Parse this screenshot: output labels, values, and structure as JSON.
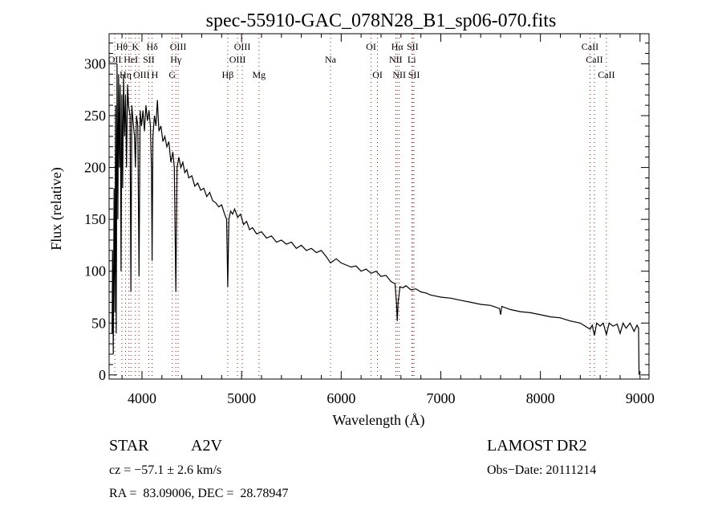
{
  "chart_data": {
    "type": "line",
    "title": "spec-55910-GAC_078N28_B1_sp06-070.fits",
    "xlabel": "Wavelength (Å)",
    "ylabel": "Flux (relative)",
    "xlim": [
      3670,
      9090
    ],
    "ylim": [
      -4,
      329
    ],
    "xticks": [
      4000,
      5000,
      6000,
      7000,
      8000,
      9000
    ],
    "yticks": [
      0,
      50,
      100,
      150,
      200,
      250,
      300
    ],
    "grid": false,
    "series": [
      {
        "name": "spectrum",
        "points": [
          [
            3700,
            40
          ],
          [
            3705,
            120
          ],
          [
            3712,
            20
          ],
          [
            3720,
            180
          ],
          [
            3728,
            60
          ],
          [
            3735,
            260
          ],
          [
            3742,
            40
          ],
          [
            3750,
            300
          ],
          [
            3758,
            150
          ],
          [
            3766,
            290
          ],
          [
            3774,
            200
          ],
          [
            3782,
            280
          ],
          [
            3790,
            100
          ],
          [
            3798,
            270
          ],
          [
            3806,
            180
          ],
          [
            3815,
            290
          ],
          [
            3825,
            230
          ],
          [
            3835,
            270
          ],
          [
            3845,
            200
          ],
          [
            3855,
            280
          ],
          [
            3865,
            260
          ],
          [
            3880,
            250
          ],
          [
            3889,
            80
          ],
          [
            3898,
            260
          ],
          [
            3910,
            245
          ],
          [
            3925,
            230
          ],
          [
            3934,
            200
          ],
          [
            3945,
            250
          ],
          [
            3958,
            240
          ],
          [
            3970,
            95
          ],
          [
            3982,
            255
          ],
          [
            3995,
            240
          ],
          [
            4010,
            255
          ],
          [
            4025,
            235
          ],
          [
            4040,
            260
          ],
          [
            4055,
            245
          ],
          [
            4070,
            255
          ],
          [
            4085,
            240
          ],
          [
            4095,
            200
          ],
          [
            4102,
            110
          ],
          [
            4110,
            230
          ],
          [
            4125,
            250
          ],
          [
            4140,
            240
          ],
          [
            4155,
            265
          ],
          [
            4170,
            235
          ],
          [
            4190,
            240
          ],
          [
            4210,
            225
          ],
          [
            4230,
            230
          ],
          [
            4250,
            220
          ],
          [
            4270,
            225
          ],
          [
            4290,
            205
          ],
          [
            4310,
            215
          ],
          [
            4325,
            200
          ],
          [
            4340,
            80
          ],
          [
            4352,
            200
          ],
          [
            4370,
            210
          ],
          [
            4390,
            200
          ],
          [
            4410,
            205
          ],
          [
            4430,
            195
          ],
          [
            4450,
            198
          ],
          [
            4470,
            190
          ],
          [
            4500,
            192
          ],
          [
            4530,
            182
          ],
          [
            4560,
            185
          ],
          [
            4590,
            178
          ],
          [
            4620,
            180
          ],
          [
            4650,
            172
          ],
          [
            4680,
            176
          ],
          [
            4710,
            168
          ],
          [
            4740,
            166
          ],
          [
            4770,
            162
          ],
          [
            4800,
            164
          ],
          [
            4830,
            155
          ],
          [
            4850,
            150
          ],
          [
            4861,
            85
          ],
          [
            4872,
            150
          ],
          [
            4890,
            158
          ],
          [
            4910,
            155
          ],
          [
            4930,
            160
          ],
          [
            4960,
            152
          ],
          [
            4990,
            155
          ],
          [
            5020,
            145
          ],
          [
            5050,
            148
          ],
          [
            5080,
            140
          ],
          [
            5110,
            142
          ],
          [
            5150,
            136
          ],
          [
            5200,
            138
          ],
          [
            5250,
            132
          ],
          [
            5300,
            134
          ],
          [
            5350,
            128
          ],
          [
            5400,
            130
          ],
          [
            5450,
            126
          ],
          [
            5500,
            128
          ],
          [
            5550,
            122
          ],
          [
            5600,
            125
          ],
          [
            5650,
            120
          ],
          [
            5700,
            122
          ],
          [
            5750,
            118
          ],
          [
            5800,
            120
          ],
          [
            5850,
            114
          ],
          [
            5893,
            108
          ],
          [
            5950,
            112
          ],
          [
            6000,
            108
          ],
          [
            6050,
            106
          ],
          [
            6100,
            104
          ],
          [
            6150,
            105
          ],
          [
            6200,
            100
          ],
          [
            6250,
            102
          ],
          [
            6300,
            98
          ],
          [
            6350,
            100
          ],
          [
            6400,
            95
          ],
          [
            6450,
            96
          ],
          [
            6500,
            90
          ],
          [
            6540,
            88
          ],
          [
            6555,
            70
          ],
          [
            6563,
            52
          ],
          [
            6572,
            70
          ],
          [
            6590,
            85
          ],
          [
            6620,
            84
          ],
          [
            6650,
            86
          ],
          [
            6700,
            82
          ],
          [
            6750,
            83
          ],
          [
            6800,
            80
          ],
          [
            6850,
            79
          ],
          [
            6900,
            77
          ],
          [
            6950,
            76
          ],
          [
            7000,
            75
          ],
          [
            7100,
            74
          ],
          [
            7200,
            72
          ],
          [
            7300,
            70
          ],
          [
            7400,
            68
          ],
          [
            7500,
            67
          ],
          [
            7590,
            64
          ],
          [
            7600,
            58
          ],
          [
            7612,
            66
          ],
          [
            7700,
            63
          ],
          [
            7800,
            61
          ],
          [
            7900,
            60
          ],
          [
            8000,
            58
          ],
          [
            8100,
            56
          ],
          [
            8200,
            55
          ],
          [
            8300,
            52
          ],
          [
            8400,
            50
          ],
          [
            8450,
            47
          ],
          [
            8500,
            44
          ],
          [
            8520,
            48
          ],
          [
            8542,
            38
          ],
          [
            8565,
            50
          ],
          [
            8600,
            47
          ],
          [
            8630,
            50
          ],
          [
            8662,
            39
          ],
          [
            8690,
            50
          ],
          [
            8730,
            47
          ],
          [
            8770,
            49
          ],
          [
            8800,
            40
          ],
          [
            8830,
            50
          ],
          [
            8860,
            45
          ],
          [
            8900,
            50
          ],
          [
            8940,
            42
          ],
          [
            8970,
            48
          ],
          [
            8985,
            45
          ],
          [
            8990,
            0
          ]
        ]
      }
    ],
    "line_markers": [
      {
        "label": "Hθ",
        "wave": 3798,
        "row": 1
      },
      {
        "label": "K",
        "wave": 3934,
        "row": 1
      },
      {
        "label": "Hδ",
        "wave": 4102,
        "row": 1
      },
      {
        "label": "OIII",
        "wave": 4363,
        "row": 1
      },
      {
        "label": "OIII",
        "wave": 5007,
        "row": 1
      },
      {
        "label": "OI",
        "wave": 6300,
        "row": 1
      },
      {
        "label": "Hα",
        "wave": 6563,
        "row": 1
      },
      {
        "label": "SII",
        "wave": 6717,
        "row": 1
      },
      {
        "label": "CaII",
        "wave": 8498,
        "row": 1
      },
      {
        "label": "OII",
        "wave": 3727,
        "row": 2
      },
      {
        "label": "HeI",
        "wave": 3889,
        "row": 2
      },
      {
        "label": "SII",
        "wave": 4068,
        "row": 2
      },
      {
        "label": "Hγ",
        "wave": 4340,
        "row": 2
      },
      {
        "label": "OIII",
        "wave": 4959,
        "row": 2
      },
      {
        "label": "Na",
        "wave": 5893,
        "row": 2
      },
      {
        "label": "NII",
        "wave": 6548,
        "row": 2
      },
      {
        "label": "Li",
        "wave": 6708,
        "row": 2
      },
      {
        "label": "CaII",
        "wave": 8542,
        "row": 2
      },
      {
        "label": "OIII",
        "wave": 3869,
        "row": 3
      },
      {
        "label": "Hη",
        "wave": 3835,
        "row": 3
      },
      {
        "label": "H",
        "wave": 3970,
        "row": 3
      },
      {
        "label": "G",
        "wave": 4304,
        "row": 3
      },
      {
        "label": "Hβ",
        "wave": 4861,
        "row": 3
      },
      {
        "label": "Mg",
        "wave": 5175,
        "row": 3
      },
      {
        "label": "OI",
        "wave": 6364,
        "row": 3
      },
      {
        "label": "NII",
        "wave": 6583,
        "row": 3
      },
      {
        "label": "SII",
        "wave": 6731,
        "row": 3
      },
      {
        "label": "CaII",
        "wave": 8662,
        "row": 3
      }
    ]
  },
  "info": {
    "class": "STAR",
    "subclass": "A2V",
    "release": "LAMOST DR2",
    "cz": "cz = −57.1 ± 2.6 km/s",
    "obs_date": "Obs−Date: 20111214",
    "coords": "RA =  83.09006, DEC =  28.78947"
  },
  "colors": {
    "axis": "#000000",
    "marker": "#8b1a1a",
    "spectrum": "#000000"
  }
}
